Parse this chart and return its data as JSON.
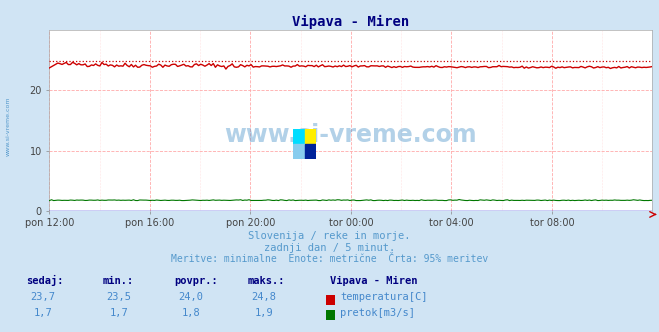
{
  "title": "Vipava - Miren",
  "title_color": "#000080",
  "bg_color": "#d0e4f4",
  "plot_bg_color": "#ffffff",
  "x_labels": [
    "pon 12:00",
    "pon 16:00",
    "pon 20:00",
    "tor 00:00",
    "tor 04:00",
    "tor 08:00"
  ],
  "x_ticks_count": 6,
  "y_min": 0,
  "y_max": 30,
  "y_ticks": [
    0,
    10,
    20
  ],
  "temp_min": 23.5,
  "temp_max": 24.8,
  "temp_avg": 24.0,
  "temp_current": 23.7,
  "flow_min": 1.7,
  "flow_max": 1.9,
  "flow_avg": 1.8,
  "flow_current": 1.7,
  "temp_color": "#cc0000",
  "flow_color": "#007700",
  "dotted_line_value": 24.8,
  "watermark_text": "www.si-vreme.com",
  "watermark_color": "#5599cc",
  "left_label": "www.si-vreme.com",
  "subtitle1": "Slovenija / reke in morje.",
  "subtitle2": "zadnji dan / 5 minut.",
  "subtitle3": "Meritve: minimalne  Enote: metrične  Črta: 95% meritev",
  "subtitle_color": "#5599cc",
  "table_header_color": "#000080",
  "table_value_color": "#4488cc",
  "n_points": 288,
  "figwidth": 6.59,
  "figheight": 3.32,
  "dpi": 100
}
